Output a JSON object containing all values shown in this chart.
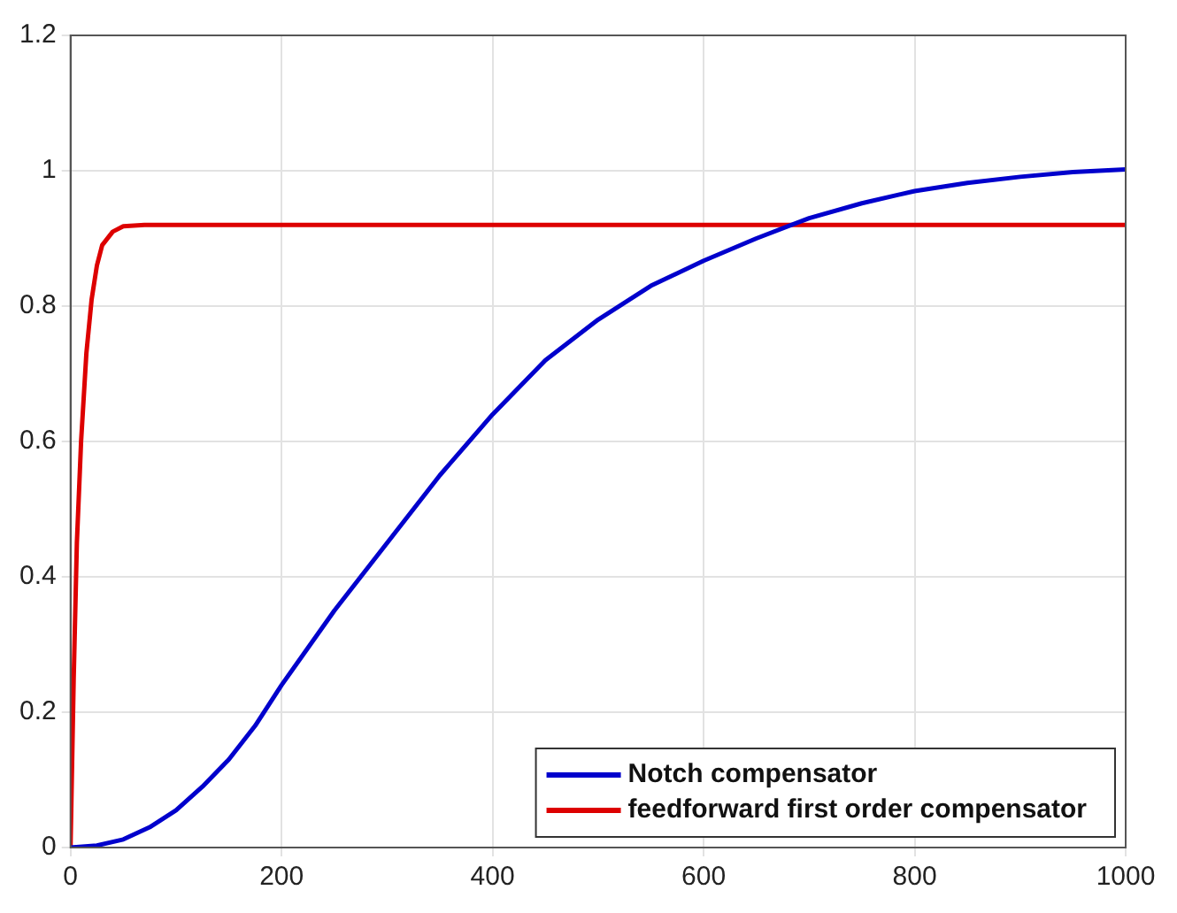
{
  "chart_data": {
    "type": "line",
    "xlim": [
      0,
      1000
    ],
    "xticks": [
      0,
      200,
      400,
      600,
      800,
      1000
    ],
    "ylim": [
      0,
      1.2
    ],
    "yticks": [
      0,
      0.2,
      0.4,
      0.6,
      0.8,
      1,
      1.2
    ],
    "grid": true,
    "legend": "bottom right",
    "marker": "none",
    "line_style": "solid",
    "series": [
      {
        "name": "Notch compensator",
        "color": "#0000cc",
        "x": [
          0,
          25,
          50,
          75,
          100,
          125,
          150,
          175,
          200,
          250,
          300,
          350,
          400,
          450,
          500,
          550,
          600,
          650,
          700,
          750,
          800,
          850,
          900,
          950,
          1000
        ],
        "values": [
          0,
          0.003,
          0.012,
          0.03,
          0.055,
          0.09,
          0.13,
          0.18,
          0.24,
          0.35,
          0.45,
          0.55,
          0.64,
          0.72,
          0.78,
          0.83,
          0.867,
          0.9,
          0.93,
          0.952,
          0.97,
          0.982,
          0.991,
          0.998,
          1.002
        ]
      },
      {
        "name": "feedforward first order compensator",
        "color": "#dd0000",
        "x": [
          0,
          3,
          6,
          10,
          15,
          20,
          25,
          30,
          40,
          50,
          70,
          100,
          400,
          700,
          1000
        ],
        "values": [
          0,
          0.25,
          0.45,
          0.6,
          0.73,
          0.81,
          0.86,
          0.89,
          0.91,
          0.918,
          0.92,
          0.92,
          0.92,
          0.92,
          0.92
        ]
      }
    ]
  }
}
